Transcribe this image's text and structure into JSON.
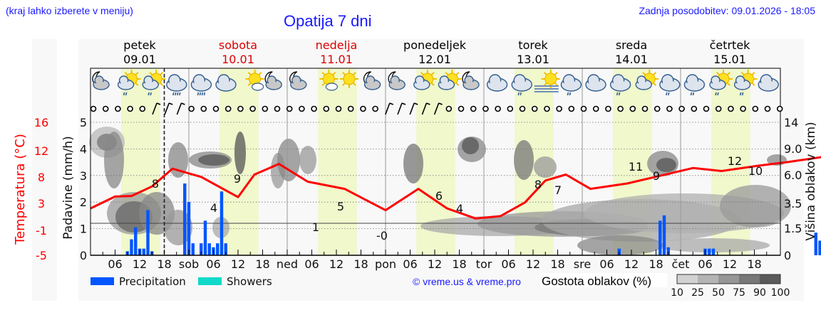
{
  "header": {
    "location_hint": "(kraj lahko izberete v meniju)",
    "title": "Opatija 7 dni",
    "last_update": "Zadnja posodobitev: 09.01.2026 - 18:05"
  },
  "days": [
    {
      "name": "petek",
      "date": "09.01",
      "weekend": false
    },
    {
      "name": "sobota",
      "date": "10.01",
      "weekend": true
    },
    {
      "name": "nedelja",
      "date": "11.01",
      "weekend": true
    },
    {
      "name": "ponedeljek",
      "date": "12.01",
      "weekend": false
    },
    {
      "name": "torek",
      "date": "13.01",
      "weekend": false
    },
    {
      "name": "sreda",
      "date": "14.01",
      "weekend": false
    },
    {
      "name": "četrtek",
      "date": "15.01",
      "weekend": false
    }
  ],
  "colors": {
    "title_blue": "#1a1aff",
    "weekend_red": "#dd0000",
    "temperature": "#ff0000",
    "precipitation": "#0055ff",
    "showers": "#11d9c9",
    "daylight": "#f0f8cc",
    "panel_bg": "#f8f8f8"
  },
  "weather_icons": [
    "moon-cloud",
    "sun-cloud-rain",
    "sun-cloud-rain",
    "cloud-heavy-rain",
    "cloud-heavy-rain",
    "cloud",
    "sun-small-cloud",
    "moon-cloud",
    "moon-cloud",
    "sun-small-cloud",
    "sun",
    "moon-cloud",
    "moon-cloud",
    "sun-cloud",
    "sun-cloud",
    "moon-cloud",
    "cloud",
    "cloud-rain",
    "sun-fog",
    "cloud-rain",
    "cloud",
    "cloud-rain",
    "sun-cloud",
    "cloud-rain",
    "cloud-rain",
    "sun-cloud-rain",
    "sun-cloud-rain",
    "cloud"
  ],
  "axes": {
    "left_temp_label": "Temperatura (°C)",
    "left_temp_ticks": [
      "16",
      "12",
      "8",
      "3",
      "-1",
      "-5"
    ],
    "precip_label": "Padavine (mm/h)",
    "precip_ticks": [
      "0",
      "1",
      "2",
      "3",
      "4",
      "5"
    ],
    "right_label": "Višina oblakov (km)",
    "right_ticks": [
      "0",
      "1.5",
      "3.5",
      "6.0",
      "9.0",
      "14"
    ],
    "x_ticks": [
      "06",
      "12",
      "18",
      "sob",
      "06",
      "12",
      "18",
      "ned",
      "06",
      "12",
      "18",
      "pon",
      "06",
      "12",
      "18",
      "tor",
      "06",
      "12",
      "18",
      "sre",
      "06",
      "12",
      "18",
      "čet",
      "06",
      "12",
      "18"
    ]
  },
  "legend": {
    "precipitation": "Precipitation",
    "showers": "Showers",
    "copyright": "© vreme.us & vreme.pro",
    "cloud_density_title": "Gostota oblakov (%)",
    "cloud_density_ticks": [
      "10",
      "25",
      "50",
      "75",
      "90",
      "100"
    ]
  },
  "chart_data": {
    "type": "line",
    "title": "Opatija 7 dni",
    "xlabel": "",
    "ylabel": "Padavine (mm/h)",
    "ylim": [
      0,
      5
    ],
    "x_unit": "hours since 09.01 00:00",
    "series": [
      {
        "name": "Temperatura (°C)",
        "x": [
          0,
          6,
          10,
          15,
          20,
          27,
          36,
          40,
          46,
          53,
          62,
          72,
          80,
          87,
          94,
          100,
          106,
          111,
          116,
          122,
          131,
          139,
          147,
          154,
          163,
          170,
          178,
          187,
          195,
          208,
          216,
          224,
          230,
          238,
          243,
          251,
          259,
          268
        ],
        "values": [
          1.5,
          3.5,
          3.6,
          5.2,
          8.2,
          6.8,
          3.4,
          7.2,
          9.0,
          6.0,
          4.8,
          1.2,
          4.8,
          1.5,
          -0.2,
          0.2,
          2.5,
          6.2,
          7.2,
          4.8,
          5.7,
          7.0,
          8.3,
          7.8,
          8.7,
          9.3,
          10.1,
          11.2,
          10.7,
          11.5,
          12.8,
          12.7,
          13.0,
          12.0,
          12.3,
          13.2,
          12.6,
          12.6
        ],
        "labels": [
          {
            "hour": 16,
            "value": "8"
          },
          {
            "hour": 35,
            "value": "4"
          },
          {
            "hour": 40,
            "value": "9"
          },
          {
            "hour": 67,
            "value": "1"
          },
          {
            "hour": 88,
            "value": "5"
          },
          {
            "hour": 98,
            "value": "-0"
          },
          {
            "hour": 112,
            "value": "6"
          },
          {
            "hour": 113,
            "value": "4"
          },
          {
            "hour": 144,
            "value": "8"
          },
          {
            "hour": 142,
            "value": "7"
          },
          {
            "hour": 166,
            "value": "11"
          },
          {
            "hour": 164,
            "value": "9"
          },
          {
            "hour": 214,
            "value": "12"
          },
          {
            "hour": 225,
            "value": "10"
          }
        ]
      },
      {
        "name": "Precipitation (mm/h)",
        "x": [
          9,
          10,
          11,
          12,
          13,
          14,
          15,
          16,
          23,
          24,
          25,
          26,
          27,
          28,
          29,
          30,
          31,
          32,
          33,
          34,
          35,
          36,
          129,
          139,
          140,
          141,
          142,
          150,
          151,
          152,
          177,
          178,
          229,
          230,
          231
        ],
        "values": [
          0.15,
          0.6,
          1.05,
          0.25,
          0.25,
          1.7,
          0.15,
          0.0,
          2.7,
          2.0,
          0.45,
          0.0,
          0.45,
          1.3,
          0.45,
          0.3,
          0.45,
          2.4,
          0.45,
          0.0,
          0.0,
          0.0,
          0.25,
          1.3,
          1.5,
          0.3,
          0.0,
          0.25,
          0.25,
          0.25,
          0.85,
          0.55,
          0.8,
          1.95,
          0.8
        ]
      }
    ],
    "right_axis": {
      "label": "Višina oblakov (km)",
      "ticks": [
        0,
        1.5,
        3.5,
        6.0,
        9.0,
        14
      ]
    },
    "left_temp_axis": {
      "label": "Temperatura (°C)",
      "ticks": [
        -5,
        -1,
        3,
        8,
        12,
        16
      ]
    },
    "legend_position": "bottom"
  }
}
